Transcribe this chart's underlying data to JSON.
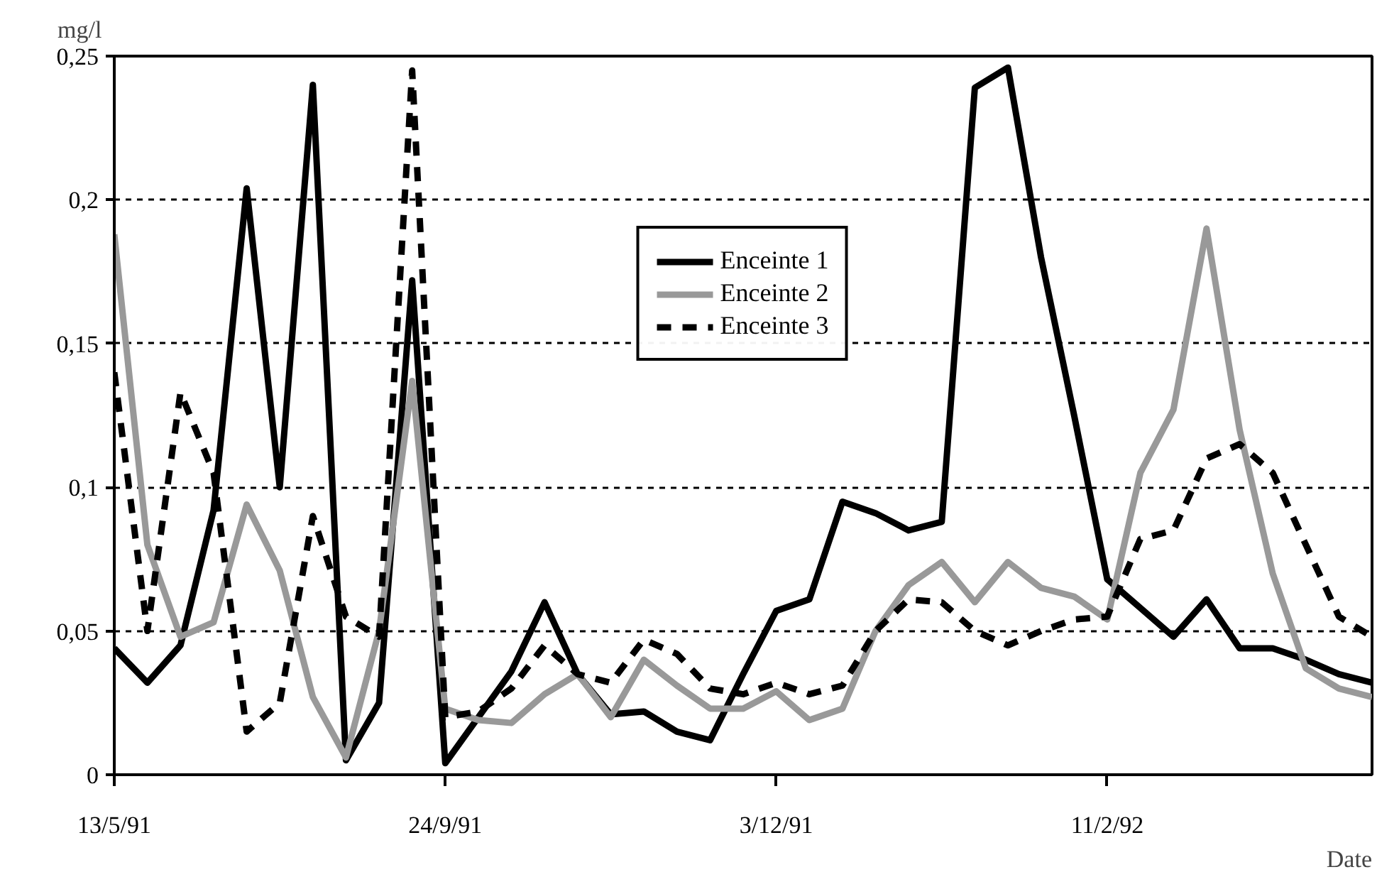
{
  "chart_data": {
    "type": "line",
    "xlabel": "Date",
    "ylabel": "mg/l",
    "categories": [
      "13/5/91",
      null,
      null,
      null,
      null,
      null,
      null,
      null,
      null,
      null,
      "24/9/91",
      null,
      null,
      null,
      null,
      null,
      null,
      null,
      null,
      null,
      "3/12/91",
      null,
      null,
      null,
      null,
      null,
      null,
      null,
      null,
      null,
      "11/2/92",
      null,
      null,
      null,
      null,
      null,
      null,
      null,
      null
    ],
    "ylim": [
      0,
      0.25
    ],
    "yticks": [
      0,
      {
        "value": 0.05,
        "label": "0,05"
      },
      {
        "value": 0.1,
        "label": "0,1"
      },
      {
        "value": 0.15,
        "label": "0,15"
      },
      {
        "value": 0.2,
        "label": "0,2"
      },
      {
        "value": 0.25,
        "label": "0,25"
      }
    ],
    "grid": "y",
    "legend": "top",
    "marker": "none",
    "series": [
      {
        "name": "Enceinte 1",
        "color": "#000000",
        "line_style": "solid",
        "values": [
          0.044,
          0.032,
          0.045,
          0.092,
          0.204,
          0.1,
          0.24,
          0.005,
          0.025,
          0.172,
          0.004,
          0.02,
          0.036,
          0.06,
          0.035,
          0.021,
          0.022,
          0.015,
          0.012,
          0.035,
          0.057,
          0.061,
          0.095,
          0.091,
          0.085,
          0.088,
          0.239,
          0.246,
          0.18,
          0.125,
          0.068,
          0.058,
          0.048,
          0.061,
          0.044,
          0.044,
          0.04,
          0.035,
          0.032
        ]
      },
      {
        "name": "Enceinte 2",
        "color": "#999999",
        "line_style": "solid",
        "values": [
          0.188,
          0.08,
          0.048,
          0.053,
          0.094,
          0.071,
          0.027,
          0.006,
          0.05,
          0.137,
          0.023,
          0.019,
          0.018,
          0.028,
          0.035,
          0.02,
          0.04,
          0.031,
          0.023,
          0.023,
          0.029,
          0.019,
          0.023,
          0.05,
          0.066,
          0.074,
          0.06,
          0.074,
          0.065,
          0.062,
          0.054,
          0.105,
          0.127,
          0.19,
          0.12,
          0.07,
          0.037,
          0.03,
          0.027
        ]
      },
      {
        "name": "Enceinte 3",
        "color": "#000000",
        "line_style": "dashed",
        "values": [
          0.14,
          0.05,
          0.133,
          0.105,
          0.015,
          0.025,
          0.09,
          0.055,
          0.048,
          0.245,
          0.02,
          0.022,
          0.03,
          0.045,
          0.035,
          0.032,
          0.047,
          0.042,
          0.03,
          0.028,
          0.032,
          0.028,
          0.031,
          0.05,
          0.061,
          0.06,
          0.05,
          0.045,
          0.05,
          0.054,
          0.055,
          0.082,
          0.085,
          0.11,
          0.115,
          0.105,
          0.08,
          0.055,
          0.048
        ]
      }
    ]
  }
}
